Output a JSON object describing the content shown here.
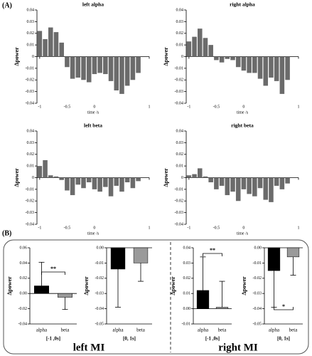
{
  "panel_labels": [
    "(A)",
    "(B)"
  ],
  "group_labels": [
    "left MI",
    "right MI"
  ],
  "chart_data": [
    {
      "type": "bar",
      "title": "left alpha",
      "x_label": "time /s",
      "y_label": "Δpower",
      "color": "#6b6b6b",
      "x": [
        -1.0,
        -0.9,
        -0.8,
        -0.7,
        -0.6,
        -0.5,
        -0.4,
        -0.3,
        -0.2,
        -0.1,
        0.0,
        0.1,
        0.2,
        0.3,
        0.4,
        0.5,
        0.6,
        0.7,
        0.8
      ],
      "values": [
        0.022,
        0.015,
        0.025,
        0.021,
        0.012,
        -0.009,
        -0.019,
        -0.018,
        -0.02,
        -0.022,
        -0.015,
        -0.014,
        -0.015,
        -0.021,
        -0.029,
        -0.032,
        -0.025,
        -0.02,
        -0.014
      ],
      "xlim": [
        -1.05,
        1.0
      ],
      "xticks": [
        -1,
        -0.5,
        0,
        1
      ],
      "ylim": [
        -0.04,
        0.04
      ],
      "yticks": [
        0.04,
        0.03,
        0.02,
        0.01,
        0,
        -0.01,
        -0.02,
        -0.03,
        -0.04
      ]
    },
    {
      "type": "bar",
      "title": "right alpha",
      "x_label": "time /s",
      "y_label": "Δpower",
      "color": "#6b6b6b",
      "x": [
        -1.0,
        -0.9,
        -0.8,
        -0.7,
        -0.6,
        -0.5,
        -0.4,
        -0.3,
        -0.2,
        -0.1,
        0.0,
        0.1,
        0.2,
        0.3,
        0.4,
        0.5,
        0.6,
        0.7,
        0.8
      ],
      "values": [
        0.013,
        0.017,
        0.024,
        0.016,
        0.01,
        -0.003,
        -0.005,
        -0.002,
        -0.003,
        -0.009,
        -0.012,
        -0.014,
        -0.014,
        -0.019,
        -0.025,
        -0.018,
        -0.021,
        -0.032,
        -0.02
      ],
      "xlim": [
        -1.05,
        1.0
      ],
      "xticks": [
        -1,
        -0.5,
        0,
        1
      ],
      "ylim": [
        -0.04,
        0.04
      ],
      "yticks": [
        0.04,
        0.03,
        0.02,
        0.01,
        0,
        -0.01,
        -0.02,
        -0.03,
        -0.04
      ]
    },
    {
      "type": "bar",
      "title": "left beta",
      "x_label": "time /s",
      "y_label": "Δpower",
      "color": "#6b6b6b",
      "x": [
        -1.0,
        -0.9,
        -0.8,
        -0.7,
        -0.6,
        -0.5,
        -0.4,
        -0.3,
        -0.2,
        -0.1,
        0.0,
        0.1,
        0.2,
        0.3,
        0.4,
        0.5,
        0.6,
        0.7,
        0.8
      ],
      "values": [
        0.01,
        0.015,
        0.002,
        0.001,
        -0.002,
        -0.011,
        -0.015,
        -0.006,
        -0.009,
        -0.004,
        -0.01,
        -0.012,
        -0.008,
        -0.016,
        -0.007,
        -0.012,
        -0.004,
        -0.009,
        -0.003
      ],
      "xlim": [
        -1.05,
        1.0
      ],
      "xticks": [
        -1,
        -0.5,
        0,
        1
      ],
      "ylim": [
        -0.04,
        0.04
      ],
      "yticks": [
        0.04,
        0.03,
        0.02,
        0.01,
        0,
        -0.01,
        -0.02,
        -0.03,
        -0.04
      ]
    },
    {
      "type": "bar",
      "title": "right beta",
      "x_label": "time /s",
      "y_label": "Δpower",
      "color": "#6b6b6b",
      "x": [
        -1.0,
        -0.9,
        -0.8,
        -0.7,
        -0.6,
        -0.5,
        -0.4,
        -0.3,
        -0.2,
        -0.1,
        0.0,
        0.1,
        0.2,
        0.3,
        0.4,
        0.5,
        0.6,
        0.7,
        0.8
      ],
      "values": [
        0.002,
        0.003,
        0.008,
        0.001,
        -0.004,
        -0.01,
        -0.007,
        -0.015,
        -0.012,
        -0.02,
        -0.01,
        -0.014,
        -0.016,
        -0.009,
        -0.019,
        -0.021,
        -0.007,
        -0.01,
        -0.005
      ],
      "xlim": [
        -1.05,
        1.0
      ],
      "xticks": [
        -1,
        -0.5,
        0,
        1
      ],
      "ylim": [
        -0.04,
        0.04
      ],
      "yticks": [
        0.04,
        0.03,
        0.02,
        0.01,
        0,
        -0.01,
        -0.02,
        -0.03,
        -0.04
      ]
    },
    {
      "type": "bar",
      "x_label": "[-1 ,0s]",
      "y_label": "Δpower",
      "categories": [
        "alpha",
        "beta"
      ],
      "colors": [
        "#000000",
        "#9a9a9a"
      ],
      "values": [
        0.01,
        -0.005
      ],
      "errors": [
        0.031,
        0.016
      ],
      "significance": "**",
      "ylim": [
        -0.04,
        0.06
      ],
      "yticks": [
        0.06,
        0.04,
        0.02,
        {
          "value": 0,
          "label": "0.00"
        },
        -0.02,
        -0.04
      ]
    },
    {
      "type": "bar",
      "x_label": "[0, 1s]",
      "y_label": "Δpower",
      "categories": [
        "alpha",
        "beta"
      ],
      "colors": [
        "#000000",
        "#9a9a9a"
      ],
      "values": [
        -0.014,
        -0.01
      ],
      "errors": [
        0.025,
        0.012
      ],
      "ylim": [
        -0.05,
        0
      ],
      "yticks": [
        {
          "value": 0,
          "label": "0.00"
        },
        -0.01,
        -0.02,
        -0.03,
        -0.04,
        -0.05
      ]
    },
    {
      "type": "bar",
      "x_label": "[-1 ,0s]",
      "y_label": "Δpower",
      "categories": [
        "alpha",
        "beta"
      ],
      "colors": [
        "#000000",
        "#9a9a9a"
      ],
      "values": [
        0.012,
        0.001
      ],
      "errors": [
        0.022,
        0.017
      ],
      "significance": "**",
      "ylim": [
        -0.01,
        0.04
      ],
      "yticks": [
        0.04,
        0.03,
        0.02,
        0.01,
        {
          "value": 0,
          "label": "0.00"
        },
        -0.01
      ]
    },
    {
      "type": "bar",
      "x_label": "[0, 1s]",
      "y_label": "Δpower",
      "categories": [
        "alpha",
        "beta"
      ],
      "colors": [
        "#000000",
        "#9a9a9a"
      ],
      "values": [
        -0.015,
        -0.006
      ],
      "errors": [
        0.024,
        0.012
      ],
      "significance": "*",
      "ylim": [
        -0.05,
        0
      ],
      "yticks": [
        {
          "value": 0,
          "label": "0.00"
        },
        -0.01,
        -0.02,
        -0.03,
        -0.04,
        -0.05
      ]
    }
  ]
}
